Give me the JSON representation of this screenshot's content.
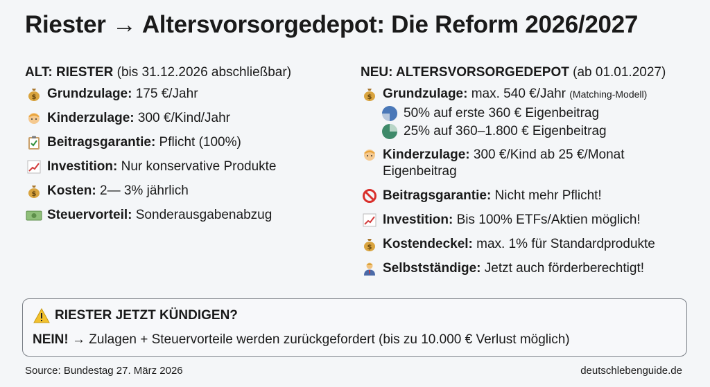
{
  "title": "Riester → Altersvorsorgedepot: Die Reform 2026/2027",
  "left": {
    "heading_bold": "ALT: RIESTER",
    "heading_rest": " (bis 31.12.2026 abschließbar)",
    "items": [
      {
        "icon": "money-bag-icon",
        "label": "Grundzulage:",
        "text": " 175 €/Jahr"
      },
      {
        "icon": "baby-icon",
        "label": "Kinderzulage:",
        "text": " 300 €/Kind/Jahr"
      },
      {
        "icon": "clipboard-icon",
        "label": "Beitragsgarantie:",
        "text": " Pflicht (100%)"
      },
      {
        "icon": "chart-up-icon",
        "label": "Investition:",
        "text": " Nur konservative Produkte"
      },
      {
        "icon": "money-bag-icon",
        "label": "Kosten:",
        "text": " 2— 3% jährlich"
      },
      {
        "icon": "banknote-icon",
        "label": "Steuervorteil:",
        "text": " Sonderausgabenabzug"
      }
    ]
  },
  "right": {
    "heading_bold": "NEU: ALTERSVORSORGEDEPOT",
    "heading_rest": " (ab 01.01.2027)",
    "grundzulage": {
      "label": "Grundzulage:",
      "text": " max. 540 €/Jahr ",
      "note": "(Matching-Modell)"
    },
    "subitems": [
      {
        "text": "50% auf erste 360 € Eigenbeitrag",
        "color": "#4a78b8"
      },
      {
        "text": "25% auf 360–1.800 € Eigenbeitrag",
        "color": "#3f8a6a"
      }
    ],
    "items": [
      {
        "icon": "baby-icon",
        "label": "Kinderzulage:",
        "text": " 300 €/Kind ab 25 €/Monat Eigenbeitrag"
      },
      {
        "icon": "prohibited-icon",
        "label": "Beitragsgarantie:",
        "text": " Nicht mehr Pflicht!"
      },
      {
        "icon": "chart-up-icon",
        "label": "Investition:",
        "text": " Bis 100% ETFs/Aktien möglich!"
      },
      {
        "icon": "money-bag-icon",
        "label": "Kostendeckel:",
        "text": " max. 1% für Standardprodukte"
      },
      {
        "icon": "businessman-icon",
        "label": "Selbstständige:",
        "text": " Jetzt auch förderberechtigt!"
      }
    ]
  },
  "warning": {
    "icon": "warning-icon",
    "title": "RIESTER JETZT KÜNDIGEN?",
    "answer": "NEIN!",
    "text": " → Zulagen + Steuervorteile werden zurückgefordert (bis zu 10.000 € Verlust möglich)"
  },
  "footer": {
    "source": "Source: Bundestag 27. März 2026",
    "site": "deutschlebenguide.de"
  }
}
